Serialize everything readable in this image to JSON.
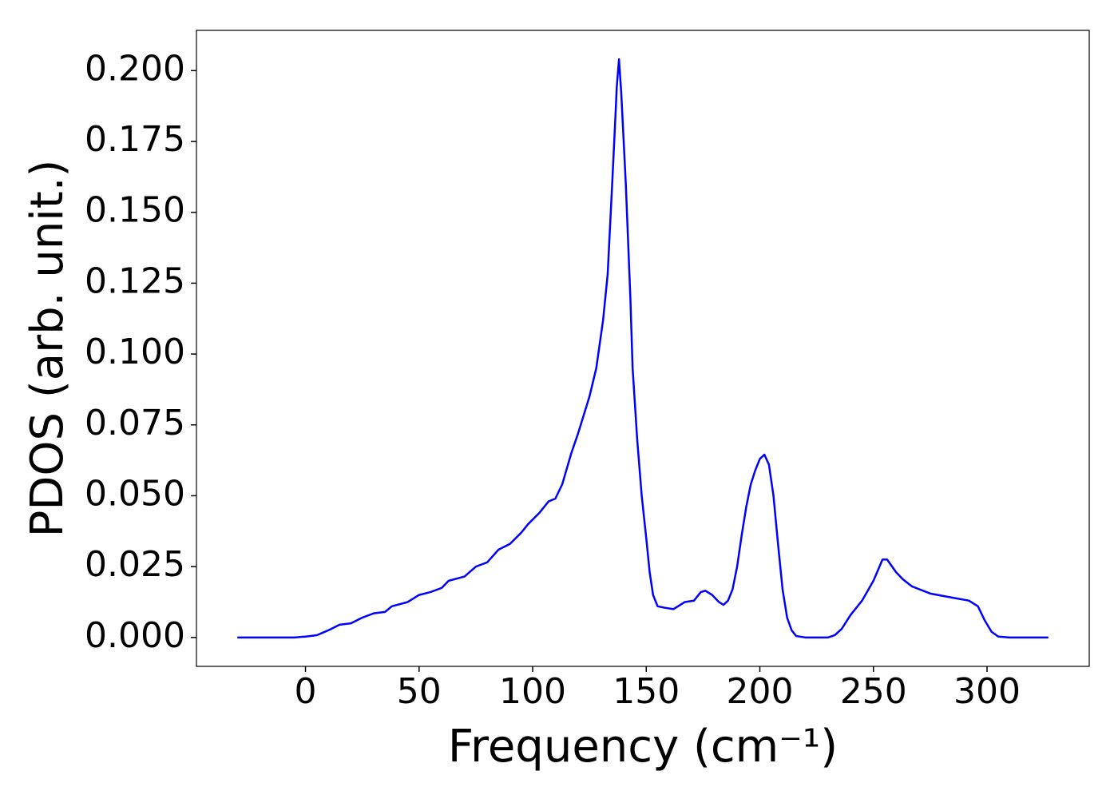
{
  "chart_data": {
    "type": "line",
    "xlabel": "Frequency (cm⁻¹)",
    "ylabel": "PDOS (arb. unit.)",
    "x": [
      -30,
      -5,
      0,
      5,
      10,
      15,
      20,
      25,
      30,
      35,
      38,
      45,
      50,
      55,
      60,
      63,
      70,
      75,
      80,
      85,
      90,
      95,
      98,
      103,
      107,
      110,
      113,
      117,
      120,
      125,
      128,
      131,
      133,
      135,
      136.5,
      137,
      138,
      139,
      141,
      143,
      144,
      146,
      148,
      150,
      151.5,
      153,
      155,
      158,
      162,
      167,
      171,
      174,
      176,
      179,
      182,
      184,
      186,
      188,
      190,
      192,
      194,
      196,
      198,
      200,
      202,
      204,
      206,
      208,
      210,
      212,
      214,
      216,
      220,
      230,
      233,
      236,
      240,
      245,
      250,
      254,
      256,
      260,
      263,
      267,
      275,
      285,
      292,
      296,
      299,
      302,
      305,
      310,
      327
    ],
    "series": [
      {
        "name": "PDOS",
        "color": "#0000ff",
        "values": [
          0,
          0,
          0.0003,
          0.0008,
          0.0025,
          0.0045,
          0.005,
          0.007,
          0.0085,
          0.009,
          0.011,
          0.0125,
          0.015,
          0.016,
          0.0175,
          0.02,
          0.0215,
          0.025,
          0.0265,
          0.031,
          0.033,
          0.037,
          0.04,
          0.044,
          0.048,
          0.049,
          0.054,
          0.065,
          0.072,
          0.085,
          0.095,
          0.112,
          0.128,
          0.16,
          0.185,
          0.194,
          0.204,
          0.192,
          0.16,
          0.12,
          0.095,
          0.07,
          0.05,
          0.035,
          0.023,
          0.015,
          0.011,
          0.0105,
          0.01,
          0.0125,
          0.013,
          0.016,
          0.0165,
          0.015,
          0.0125,
          0.0115,
          0.013,
          0.017,
          0.025,
          0.036,
          0.046,
          0.054,
          0.059,
          0.063,
          0.0645,
          0.061,
          0.05,
          0.033,
          0.017,
          0.007,
          0.0025,
          0.0005,
          0,
          0,
          0.0008,
          0.003,
          0.008,
          0.013,
          0.02,
          0.0275,
          0.0275,
          0.023,
          0.0205,
          0.018,
          0.0155,
          0.014,
          0.013,
          0.011,
          0.006,
          0.002,
          0.0003,
          0,
          0
        ]
      }
    ],
    "xlim": [
      -48,
      345
    ],
    "ylim": [
      -0.0102,
      0.2142
    ],
    "xticks": [
      0,
      50,
      100,
      150,
      200,
      250,
      300
    ],
    "yticks": [
      {
        "value": 0,
        "label": "0.000"
      },
      {
        "value": 0.025,
        "label": "0.025"
      },
      {
        "value": 0.05,
        "label": "0.050"
      },
      {
        "value": 0.075,
        "label": "0.075"
      },
      {
        "value": 0.1,
        "label": "0.100"
      },
      {
        "value": 0.125,
        "label": "0.125"
      },
      {
        "value": 0.15,
        "label": "0.150"
      },
      {
        "value": 0.175,
        "label": "0.175"
      },
      {
        "value": 0.2,
        "label": "0.200"
      }
    ]
  }
}
